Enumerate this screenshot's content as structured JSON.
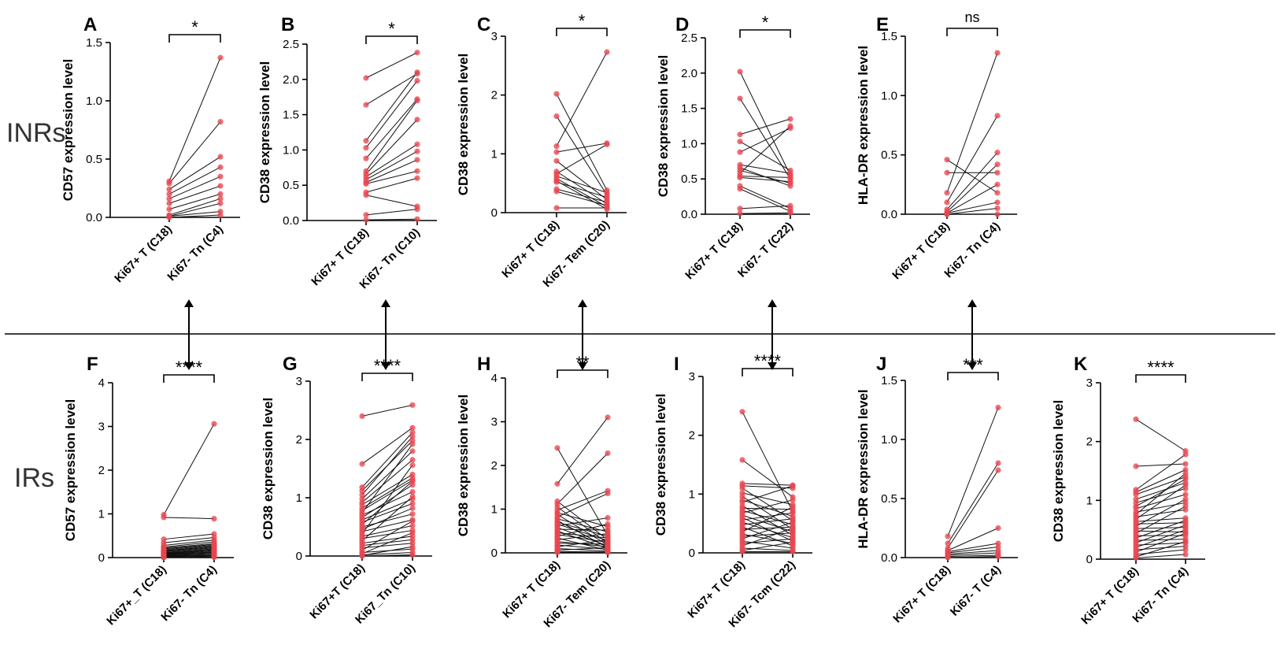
{
  "group_labels": {
    "top": "INRs",
    "bottom": "IRs"
  },
  "colors": {
    "point": "#e8454f",
    "line": "#111111",
    "axis": "#000000",
    "divider": "#000000"
  },
  "chart_data": [
    {
      "letter": "A",
      "type": "scatter",
      "ylabel": "CD57 expression level",
      "ylim": [
        0,
        1.5
      ],
      "yticks": [
        "0.0",
        "0.5",
        "1.0",
        "1.5"
      ],
      "categories": [
        "Ki67+ T (C18)",
        "Ki67- Tn (C4)"
      ],
      "sig": "*",
      "pairs": [
        [
          0.31,
          1.37
        ],
        [
          0.29,
          0.82
        ],
        [
          0.24,
          0.52
        ],
        [
          0.2,
          0.43
        ],
        [
          0.16,
          0.35
        ],
        [
          0.12,
          0.27
        ],
        [
          0.07,
          0.2
        ],
        [
          0.02,
          0.16
        ],
        [
          0.01,
          0.12
        ],
        [
          0.01,
          0.05
        ],
        [
          0.0,
          0.02
        ]
      ]
    },
    {
      "letter": "B",
      "type": "scatter",
      "ylabel": "CD38 expression level",
      "ylim": [
        0,
        2.5
      ],
      "yticks": [
        "0.0",
        "0.5",
        "1.0",
        "1.5",
        "2.0",
        "2.5"
      ],
      "categories": [
        "Ki67+ T (C18)",
        "Ki67- Tn (C10)"
      ],
      "sig": "*",
      "pairs": [
        [
          2.02,
          2.38
        ],
        [
          1.64,
          2.08
        ],
        [
          1.13,
          2.1
        ],
        [
          1.03,
          1.98
        ],
        [
          0.88,
          1.72
        ],
        [
          0.7,
          1.7
        ],
        [
          0.66,
          1.43
        ],
        [
          0.62,
          1.08
        ],
        [
          0.58,
          0.98
        ],
        [
          0.54,
          0.86
        ],
        [
          0.52,
          0.7
        ],
        [
          0.4,
          0.6
        ],
        [
          0.36,
          0.2
        ],
        [
          0.08,
          0.16
        ],
        [
          0.01,
          0.02
        ]
      ]
    },
    {
      "letter": "C",
      "type": "scatter",
      "ylabel": "CD38 expression level",
      "ylim": [
        0,
        3
      ],
      "yticks": [
        "0",
        "1",
        "2",
        "3"
      ],
      "categories": [
        "Ki67+ T (C18)",
        "Ki67- Tem (C20)"
      ],
      "sig": "*",
      "pairs": [
        [
          2.02,
          0.38
        ],
        [
          1.64,
          0.3
        ],
        [
          1.13,
          2.73
        ],
        [
          1.03,
          1.18
        ],
        [
          0.88,
          0.22
        ],
        [
          0.7,
          0.15
        ],
        [
          0.66,
          1.16
        ],
        [
          0.62,
          0.34
        ],
        [
          0.58,
          0.1
        ],
        [
          0.54,
          0.06
        ],
        [
          0.52,
          0.26
        ],
        [
          0.4,
          0.18
        ],
        [
          0.36,
          0.12
        ],
        [
          0.08,
          0.08
        ]
      ]
    },
    {
      "letter": "D",
      "type": "scatter",
      "ylabel": "CD38 expression level",
      "ylim": [
        0,
        2.5
      ],
      "yticks": [
        "0.0",
        "0.5",
        "1.0",
        "1.5",
        "2.0",
        "2.5"
      ],
      "categories": [
        "Ki67+ T (C18)",
        "Ki67- T (C22)"
      ],
      "sig": "*",
      "pairs": [
        [
          2.02,
          0.55
        ],
        [
          1.64,
          0.5
        ],
        [
          1.13,
          1.35
        ],
        [
          1.03,
          0.62
        ],
        [
          0.88,
          1.22
        ],
        [
          0.7,
          0.58
        ],
        [
          0.66,
          0.4
        ],
        [
          0.62,
          0.44
        ],
        [
          0.58,
          1.25
        ],
        [
          0.54,
          0.52
        ],
        [
          0.52,
          0.46
        ],
        [
          0.4,
          0.08
        ],
        [
          0.36,
          0.04
        ],
        [
          0.08,
          0.12
        ],
        [
          0.01,
          0.02
        ]
      ]
    },
    {
      "letter": "E",
      "type": "scatter",
      "ylabel": "HLA-DR expression level",
      "ylim": [
        0,
        1.5
      ],
      "yticks": [
        "0.0",
        "0.5",
        "1.0",
        "1.5"
      ],
      "categories": [
        "Ki67+ T (C18)",
        "Ki67- Tn (C4)"
      ],
      "sig": "ns",
      "pairs": [
        [
          0.46,
          0.18
        ],
        [
          0.35,
          0.35
        ],
        [
          0.18,
          1.36
        ],
        [
          0.1,
          0.83
        ],
        [
          0.04,
          0.52
        ],
        [
          0.02,
          0.42
        ],
        [
          0.01,
          0.25
        ],
        [
          0.01,
          0.1
        ],
        [
          0.0,
          0.05
        ],
        [
          0.0,
          0.0
        ]
      ]
    },
    {
      "letter": "F",
      "type": "scatter",
      "ylabel": "CD57 expression level",
      "ylim": [
        0,
        4
      ],
      "yticks": [
        "0",
        "1",
        "2",
        "3",
        "4"
      ],
      "categories": [
        "Ki67+_T (C18)",
        "Ki67- Tn (C4)"
      ],
      "sig": "****",
      "pairs": [
        [
          0.98,
          3.06
        ],
        [
          0.92,
          0.89
        ],
        [
          0.42,
          0.54
        ],
        [
          0.34,
          0.46
        ],
        [
          0.28,
          0.4
        ],
        [
          0.24,
          0.36
        ],
        [
          0.22,
          0.32
        ],
        [
          0.2,
          0.3
        ],
        [
          0.18,
          0.28
        ],
        [
          0.16,
          0.26
        ],
        [
          0.15,
          0.24
        ],
        [
          0.14,
          0.22
        ],
        [
          0.12,
          0.2
        ],
        [
          0.11,
          0.19
        ],
        [
          0.1,
          0.17
        ],
        [
          0.09,
          0.15
        ],
        [
          0.08,
          0.13
        ],
        [
          0.07,
          0.12
        ],
        [
          0.06,
          0.1
        ],
        [
          0.05,
          0.08
        ],
        [
          0.04,
          0.06
        ],
        [
          0.03,
          0.05
        ],
        [
          0.02,
          0.04
        ],
        [
          0.01,
          0.02
        ],
        [
          0.0,
          0.01
        ]
      ]
    },
    {
      "letter": "G",
      "type": "scatter",
      "ylabel": "CD38 expression level",
      "ylim": [
        0,
        3
      ],
      "yticks": [
        "0",
        "1",
        "2",
        "3"
      ],
      "categories": [
        "Ki67+T (C18)",
        "Ki67_Tn (C10)"
      ],
      "sig": "****",
      "pairs": [
        [
          2.4,
          2.59
        ],
        [
          1.58,
          2.2
        ],
        [
          1.18,
          2.12
        ],
        [
          1.12,
          1.98
        ],
        [
          1.05,
          2.05
        ],
        [
          0.98,
          1.8
        ],
        [
          0.92,
          1.65
        ],
        [
          0.88,
          1.4
        ],
        [
          0.82,
          1.34
        ],
        [
          0.78,
          1.3
        ],
        [
          0.74,
          1.92
        ],
        [
          0.7,
          1.1
        ],
        [
          0.66,
          1.22
        ],
        [
          0.62,
          0.98
        ],
        [
          0.58,
          0.9
        ],
        [
          0.54,
          1.28
        ],
        [
          0.5,
          0.72
        ],
        [
          0.46,
          0.82
        ],
        [
          0.42,
          0.62
        ],
        [
          0.38,
          1.56
        ],
        [
          0.34,
          0.52
        ],
        [
          0.3,
          0.44
        ],
        [
          0.26,
          1.02
        ],
        [
          0.22,
          0.34
        ],
        [
          0.18,
          0.28
        ],
        [
          0.14,
          0.22
        ],
        [
          0.1,
          0.6
        ],
        [
          0.06,
          0.12
        ],
        [
          0.04,
          0.4
        ],
        [
          0.02,
          0.06
        ],
        [
          0.01,
          0.16
        ],
        [
          0.0,
          0.02
        ]
      ]
    },
    {
      "letter": "H",
      "type": "scatter",
      "ylabel": "CD38 expression level",
      "ylim": [
        0,
        4
      ],
      "yticks": [
        "0",
        "1",
        "2",
        "3",
        "4"
      ],
      "categories": [
        "Ki67+ T (C18)",
        "Ki67- Tem (C20)"
      ],
      "sig": "**",
      "pairs": [
        [
          2.4,
          0.4
        ],
        [
          1.58,
          3.1
        ],
        [
          1.18,
          0.3
        ],
        [
          1.12,
          2.28
        ],
        [
          1.05,
          0.22
        ],
        [
          0.98,
          1.42
        ],
        [
          0.92,
          0.6
        ],
        [
          0.88,
          0.18
        ],
        [
          0.82,
          1.36
        ],
        [
          0.78,
          0.48
        ],
        [
          0.74,
          0.12
        ],
        [
          0.7,
          0.38
        ],
        [
          0.66,
          0.28
        ],
        [
          0.62,
          0.8
        ],
        [
          0.58,
          0.16
        ],
        [
          0.54,
          0.52
        ],
        [
          0.5,
          0.1
        ],
        [
          0.46,
          0.34
        ],
        [
          0.42,
          0.24
        ],
        [
          0.38,
          0.66
        ],
        [
          0.34,
          0.06
        ],
        [
          0.3,
          0.44
        ],
        [
          0.26,
          0.14
        ],
        [
          0.22,
          0.2
        ],
        [
          0.18,
          0.08
        ],
        [
          0.14,
          0.3
        ],
        [
          0.1,
          0.04
        ],
        [
          0.06,
          0.12
        ],
        [
          0.03,
          0.02
        ],
        [
          0.01,
          0.01
        ]
      ]
    },
    {
      "letter": "I",
      "type": "scatter",
      "ylabel": "CD38 expression level",
      "ylim": [
        0,
        3
      ],
      "yticks": [
        "0",
        "1",
        "2",
        "3"
      ],
      "categories": [
        "Ki67+ T (C18)",
        "Ki67- Tcm (C22)"
      ],
      "sig": "****",
      "pairs": [
        [
          2.4,
          0.7
        ],
        [
          1.58,
          0.95
        ],
        [
          1.18,
          1.15
        ],
        [
          1.14,
          1.1
        ],
        [
          1.1,
          0.55
        ],
        [
          1.02,
          0.82
        ],
        [
          0.96,
          0.4
        ],
        [
          0.9,
          0.62
        ],
        [
          0.86,
          1.14
        ],
        [
          0.8,
          0.3
        ],
        [
          0.76,
          0.74
        ],
        [
          0.72,
          0.48
        ],
        [
          0.68,
          0.9
        ],
        [
          0.64,
          0.36
        ],
        [
          0.6,
          0.2
        ],
        [
          0.56,
          0.68
        ],
        [
          0.52,
          0.26
        ],
        [
          0.48,
          0.58
        ],
        [
          0.44,
          0.12
        ],
        [
          0.4,
          0.44
        ],
        [
          0.36,
          0.78
        ],
        [
          0.32,
          0.16
        ],
        [
          0.28,
          0.34
        ],
        [
          0.24,
          0.52
        ],
        [
          0.2,
          0.08
        ],
        [
          0.16,
          0.24
        ],
        [
          0.12,
          0.42
        ],
        [
          0.08,
          0.04
        ],
        [
          0.04,
          0.18
        ],
        [
          0.02,
          0.02
        ]
      ]
    },
    {
      "letter": "J",
      "type": "scatter",
      "ylabel": "HLA-DR expression level",
      "ylim": [
        0,
        1.5
      ],
      "yticks": [
        "0.0",
        "0.5",
        "1.0",
        "1.5"
      ],
      "categories": [
        "Ki67+ T (C18)",
        "Ki67- T (C4)"
      ],
      "sig": "***",
      "pairs": [
        [
          0.18,
          1.27
        ],
        [
          0.12,
          0.8
        ],
        [
          0.08,
          0.74
        ],
        [
          0.06,
          0.25
        ],
        [
          0.05,
          0.12
        ],
        [
          0.04,
          0.09
        ],
        [
          0.03,
          0.06
        ],
        [
          0.02,
          0.04
        ],
        [
          0.01,
          0.02
        ],
        [
          0.0,
          0.01
        ]
      ]
    },
    {
      "letter": "K",
      "type": "scatter",
      "ylabel": "CD38 expression level",
      "ylim": [
        0,
        3
      ],
      "yticks": [
        "0",
        "1",
        "2",
        "3"
      ],
      "categories": [
        "Ki67+ T (C18)",
        "Ki67- Tn (C4)"
      ],
      "sig": "****",
      "pairs": [
        [
          2.38,
          1.84
        ],
        [
          1.58,
          1.62
        ],
        [
          1.18,
          1.78
        ],
        [
          1.14,
          1.52
        ],
        [
          1.1,
          1.4
        ],
        [
          1.02,
          1.3
        ],
        [
          0.96,
          1.2
        ],
        [
          0.9,
          1.36
        ],
        [
          0.86,
          1.1
        ],
        [
          0.8,
          0.96
        ],
        [
          0.76,
          1.46
        ],
        [
          0.72,
          0.84
        ],
        [
          0.68,
          1.26
        ],
        [
          0.64,
          0.7
        ],
        [
          0.6,
          0.62
        ],
        [
          0.56,
          1.02
        ],
        [
          0.52,
          0.54
        ],
        [
          0.48,
          0.46
        ],
        [
          0.44,
          0.9
        ],
        [
          0.4,
          0.4
        ],
        [
          0.36,
          0.66
        ],
        [
          0.32,
          0.34
        ],
        [
          0.28,
          0.58
        ],
        [
          0.24,
          0.28
        ],
        [
          0.2,
          0.5
        ],
        [
          0.16,
          0.22
        ],
        [
          0.12,
          0.44
        ],
        [
          0.08,
          0.16
        ],
        [
          0.04,
          0.3
        ],
        [
          0.02,
          0.08
        ]
      ]
    }
  ]
}
